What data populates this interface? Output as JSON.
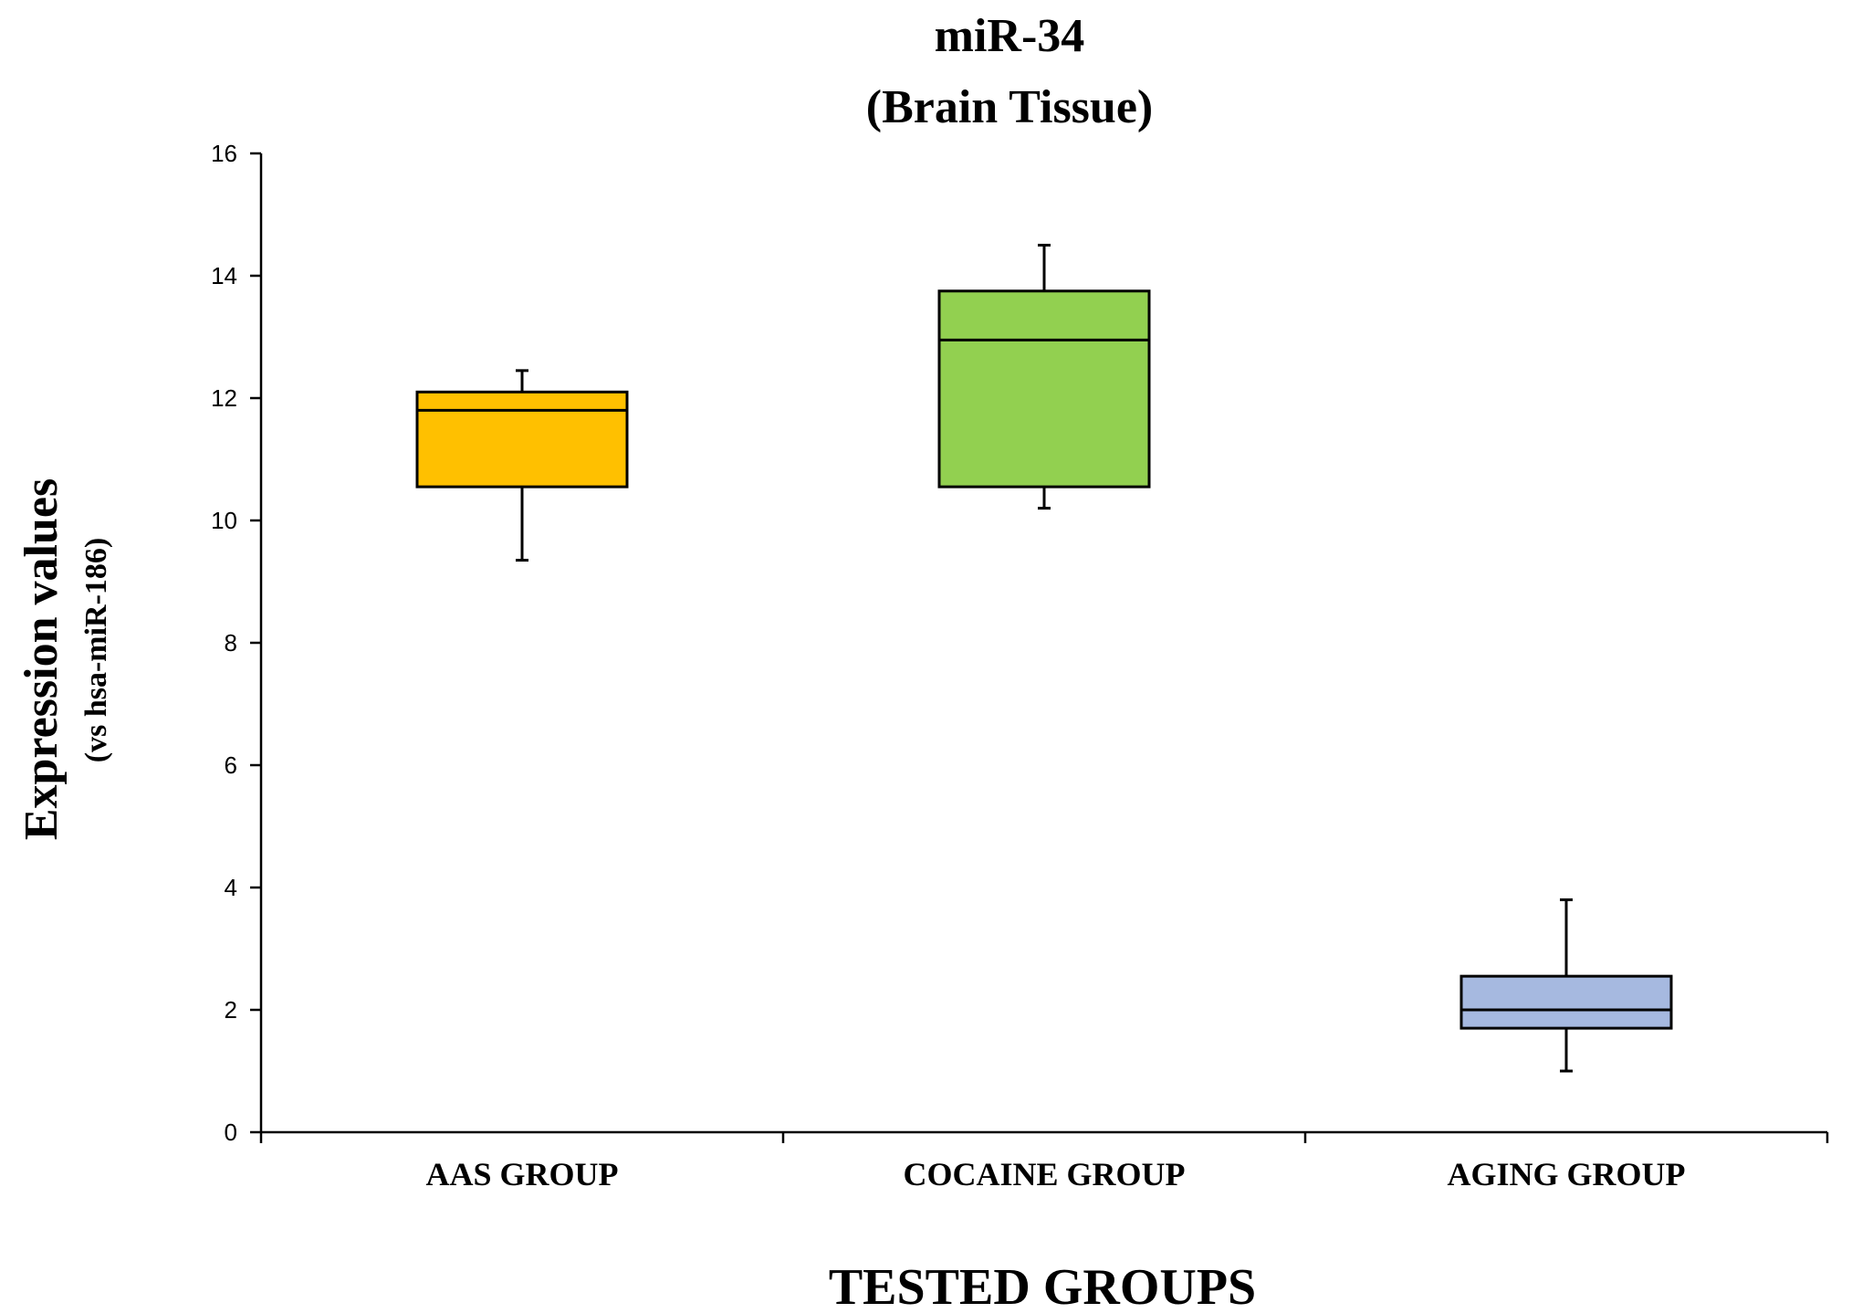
{
  "chart_data": {
    "type": "box",
    "title": "miR-34",
    "subtitle": "(Brain Tissue)",
    "ylabel": "Expression values",
    "ylabel_sub": "(vs hsa-miR-186)",
    "xlabel": "TESTED GROUPS",
    "ylim": [
      0,
      16
    ],
    "yticks": [
      0,
      2,
      4,
      6,
      8,
      10,
      12,
      14,
      16
    ],
    "categories": [
      "AAS GROUP",
      "COCAINE GROUP",
      "AGING GROUP"
    ],
    "boxes": [
      {
        "category": "AAS GROUP",
        "whisker_low": 9.35,
        "q1": 10.55,
        "median": 11.8,
        "q3": 12.1,
        "whisker_high": 12.45,
        "color": "#FFC000"
      },
      {
        "category": "COCAINE GROUP",
        "whisker_low": 10.2,
        "q1": 10.55,
        "median": 12.95,
        "q3": 13.75,
        "whisker_high": 14.5,
        "color": "#92D050"
      },
      {
        "category": "AGING GROUP",
        "whisker_low": 1.0,
        "q1": 1.7,
        "median": 2.0,
        "q3": 2.55,
        "whisker_high": 3.8,
        "color": "#A6B9E0"
      }
    ],
    "grid": false,
    "legend": "none"
  }
}
